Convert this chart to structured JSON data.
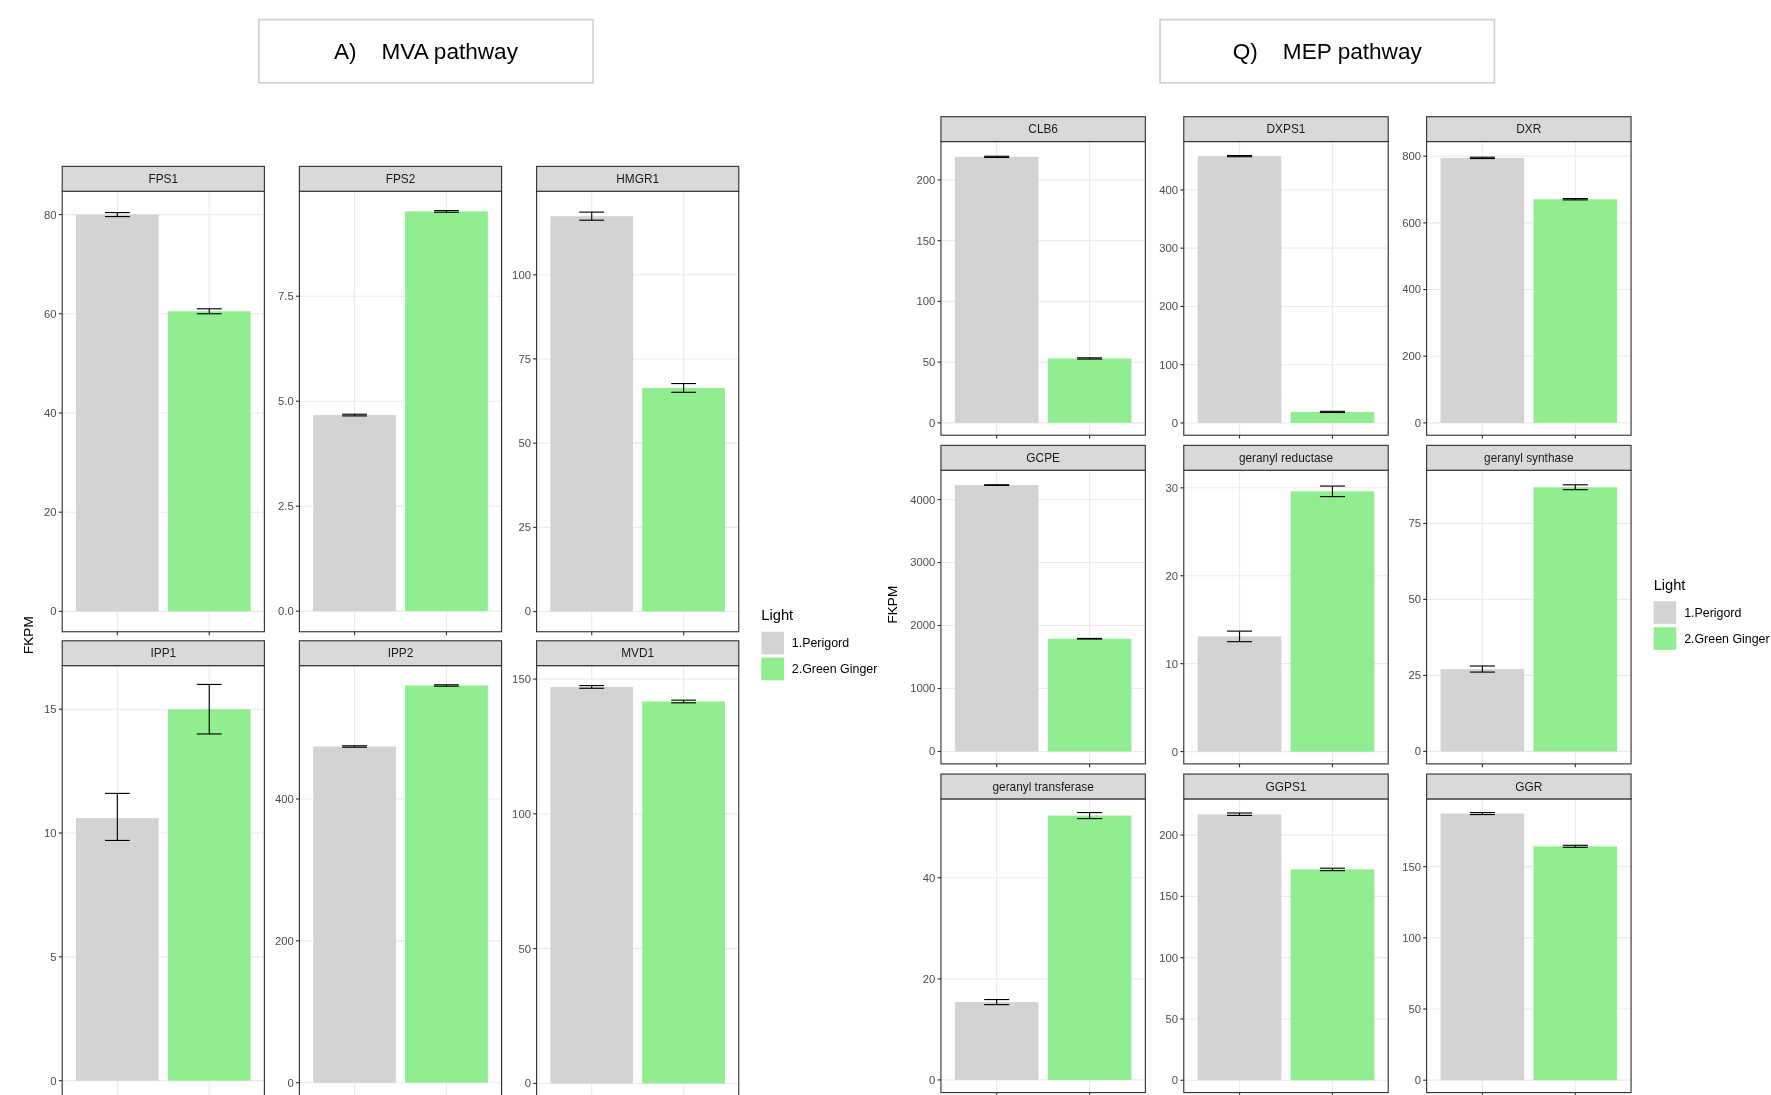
{
  "chart_data": [
    {
      "type": "bar",
      "title": "FPS1",
      "annotations": [
        "A)    MVA pathway"
      ],
      "categories": [
        null,
        null
      ],
      "ylim": [
        -4.1,
        84.7
      ],
      "yticks": [
        0,
        20,
        40,
        60,
        80
      ],
      "grid": true,
      "series": [
        {
          "color": "#d3d3d3",
          "values": [
            80,
            null
          ],
          "errors": [
            0.4,
            null
          ]
        },
        {
          "color": "#90ee90",
          "values": [
            null,
            60.5
          ],
          "errors": [
            null,
            0.5
          ]
        }
      ]
    },
    {
      "type": "bar",
      "title": "FPS2",
      "categories": [
        null,
        null
      ],
      "ylim": [
        -0.49,
        10.0
      ],
      "yticks": [
        {
          "value": 0,
          "label": "0.0"
        },
        {
          "value": 2.5,
          "label": "2.5"
        },
        {
          "value": 5,
          "label": "5.0"
        },
        {
          "value": 7.5,
          "label": "7.5"
        }
      ],
      "grid": true,
      "series": [
        {
          "color": "#d3d3d3",
          "values": [
            4.67,
            null
          ],
          "errors": [
            0.02,
            null
          ]
        },
        {
          "color": "#90ee90",
          "values": [
            null,
            9.52
          ],
          "errors": [
            null,
            0.02
          ]
        }
      ]
    },
    {
      "type": "bar",
      "title": "HMGR1",
      "categories": [
        null,
        null
      ],
      "ylim": [
        -6,
        124.8
      ],
      "yticks": [
        0,
        25,
        50,
        75,
        100
      ],
      "grid": true,
      "legend": "right",
      "legend_title": "Light",
      "series": [
        {
          "name": "1.Perigord",
          "color": "#d3d3d3",
          "values": [
            117.4,
            null
          ],
          "errors": [
            1.2,
            null
          ]
        },
        {
          "name": "2.Green Ginger",
          "color": "#90ee90",
          "values": [
            null,
            66.4
          ],
          "errors": [
            null,
            1.3
          ]
        }
      ]
    },
    {
      "type": "bar",
      "title": "IPP1",
      "ylabel": "FKPM",
      "categories": [
        null,
        null
      ],
      "ylim": [
        -0.8,
        16.76
      ],
      "yticks": [
        0,
        5,
        10,
        15
      ],
      "grid": true,
      "series": [
        {
          "color": "#d3d3d3",
          "values": [
            10.6,
            null
          ],
          "errors": [
            [
              9.7,
              11.6
            ],
            null
          ]
        },
        {
          "color": "#90ee90",
          "values": [
            null,
            15.0
          ],
          "errors": [
            null,
            [
              14.0,
              16.0
            ]
          ]
        }
      ]
    },
    {
      "type": "bar",
      "title": "IPP2",
      "categories": [
        null,
        null
      ],
      "ylim": [
        -25,
        588
      ],
      "yticks": [
        0,
        200,
        400
      ],
      "grid": true,
      "series": [
        {
          "color": "#d3d3d3",
          "values": [
            474,
            null
          ],
          "errors": [
            1,
            null
          ]
        },
        {
          "color": "#90ee90",
          "values": [
            null,
            560
          ],
          "errors": [
            null,
            1
          ]
        }
      ]
    },
    {
      "type": "bar",
      "title": "MVD1",
      "categories": [
        null,
        null
      ],
      "ylim": [
        -6.3,
        155
      ],
      "yticks": [
        0,
        50,
        100,
        150
      ],
      "grid": true,
      "series": [
        {
          "color": "#d3d3d3",
          "values": [
            147.1,
            null
          ],
          "errors": [
            0.5,
            null
          ]
        },
        {
          "color": "#90ee90",
          "values": [
            null,
            141.7
          ],
          "errors": [
            null,
            0.5
          ]
        }
      ]
    },
    {
      "type": "bar",
      "title": "CLB6",
      "annotations": [
        "Q)    MEP pathway"
      ],
      "categories": [
        null,
        null
      ],
      "ylim": [
        -10.2,
        231.6
      ],
      "yticks": [
        0,
        50,
        100,
        150,
        200
      ],
      "grid": true,
      "series": [
        {
          "color": "#d3d3d3",
          "values": [
            219,
            null
          ],
          "errors": [
            0.5,
            null
          ]
        },
        {
          "color": "#90ee90",
          "values": [
            null,
            53
          ],
          "errors": [
            null,
            0.5
          ]
        }
      ]
    },
    {
      "type": "bar",
      "title": "DXPS1",
      "categories": [
        null,
        null
      ],
      "ylim": [
        -21,
        483
      ],
      "yticks": [
        0,
        100,
        200,
        300,
        400
      ],
      "grid": true,
      "series": [
        {
          "color": "#d3d3d3",
          "values": [
            458,
            null
          ],
          "errors": [
            1,
            null
          ]
        },
        {
          "color": "#90ee90",
          "values": [
            null,
            19
          ],
          "errors": [
            null,
            1
          ]
        }
      ]
    },
    {
      "type": "bar",
      "title": "DXR",
      "categories": [
        null,
        null
      ],
      "ylim": [
        -37,
        844
      ],
      "yticks": [
        0,
        200,
        400,
        600,
        800
      ],
      "grid": true,
      "series": [
        {
          "color": "#d3d3d3",
          "values": [
            795,
            null
          ],
          "errors": [
            2,
            null
          ]
        },
        {
          "color": "#90ee90",
          "values": [
            null,
            671
          ],
          "errors": [
            null,
            2
          ]
        }
      ]
    },
    {
      "type": "bar",
      "title": "GCPE",
      "ylabel": "FKPM",
      "categories": [
        null,
        null
      ],
      "ylim": [
        -197,
        4466
      ],
      "yticks": [
        0,
        1000,
        2000,
        3000,
        4000
      ],
      "grid": true,
      "series": [
        {
          "color": "#d3d3d3",
          "values": [
            4230,
            null
          ],
          "errors": [
            5,
            null
          ]
        },
        {
          "color": "#90ee90",
          "values": [
            null,
            1790
          ],
          "errors": [
            null,
            5
          ]
        }
      ]
    },
    {
      "type": "bar",
      "title": "geranyl reductase",
      "categories": [
        null,
        null
      ],
      "ylim": [
        -1.4,
        32.0
      ],
      "yticks": [
        0,
        10,
        20,
        30
      ],
      "grid": true,
      "series": [
        {
          "color": "#d3d3d3",
          "values": [
            13.1,
            null
          ],
          "errors": [
            0.6,
            null
          ]
        },
        {
          "color": "#90ee90",
          "values": [
            null,
            29.6
          ],
          "errors": [
            null,
            0.6
          ]
        }
      ]
    },
    {
      "type": "bar",
      "title": "geranyl synthase",
      "categories": [
        null,
        null
      ],
      "ylim": [
        -4.1,
        92.5
      ],
      "yticks": [
        0,
        25,
        50,
        75
      ],
      "grid": true,
      "legend": "right",
      "legend_title": "Light",
      "series": [
        {
          "name": "1.Perigord",
          "color": "#d3d3d3",
          "values": [
            27.1,
            null
          ],
          "errors": [
            1,
            null
          ]
        },
        {
          "name": "2.Green Ginger",
          "color": "#90ee90",
          "values": [
            null,
            86.9
          ],
          "errors": [
            null,
            0.8
          ]
        }
      ]
    },
    {
      "type": "bar",
      "title": "geranyl transferase",
      "categories": [
        null,
        null
      ],
      "ylim": [
        -2.5,
        55.6
      ],
      "yticks": [
        0,
        20,
        40
      ],
      "grid": true,
      "series": [
        {
          "color": "#d3d3d3",
          "values": [
            15.4,
            null
          ],
          "errors": [
            0.5,
            null
          ]
        },
        {
          "color": "#90ee90",
          "values": [
            null,
            52.3
          ],
          "errors": [
            null,
            0.6
          ]
        }
      ]
    },
    {
      "type": "bar",
      "title": "GGPS1",
      "categories": [
        null,
        null
      ],
      "ylim": [
        -10,
        229.5
      ],
      "yticks": [
        0,
        50,
        100,
        150,
        200
      ],
      "grid": true,
      "series": [
        {
          "color": "#d3d3d3",
          "values": [
            217,
            null
          ],
          "errors": [
            1,
            null
          ]
        },
        {
          "color": "#90ee90",
          "values": [
            null,
            172
          ],
          "errors": [
            null,
            1
          ]
        }
      ]
    },
    {
      "type": "bar",
      "title": "GGR",
      "categories": [
        null,
        null
      ],
      "ylim": [
        -8.7,
        197.6
      ],
      "yticks": [
        0,
        50,
        100,
        150
      ],
      "grid": true,
      "series": [
        {
          "color": "#d3d3d3",
          "values": [
            187.3,
            null
          ],
          "errors": [
            0.7,
            null
          ]
        },
        {
          "color": "#90ee90",
          "values": [
            null,
            164.3
          ],
          "errors": [
            null,
            0.7
          ]
        }
      ]
    }
  ]
}
